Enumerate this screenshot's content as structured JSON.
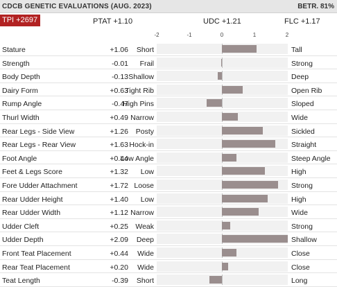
{
  "header": {
    "title": "CDCB GENETIC EVALUATIONS (AUG. 2023)",
    "betr": "BETR. 81%"
  },
  "summary": {
    "tpi": "TPI +2697",
    "ptat": "PTAT +1.10",
    "udc": "UDC +1.21",
    "flc": "FLC +1.17"
  },
  "axis": {
    "range": [
      -2,
      2
    ],
    "ticks": [
      "-2",
      "-1",
      "0",
      "1",
      "2"
    ]
  },
  "traits": [
    {
      "name": "Stature",
      "value_label": "+1.06",
      "value": 1.06,
      "low": "Short",
      "high": "Tall"
    },
    {
      "name": "Strength",
      "value_label": "-0.01",
      "value": -0.01,
      "low": "Frail",
      "high": "Strong"
    },
    {
      "name": "Body Depth",
      "value_label": "-0.13",
      "value": -0.13,
      "low": "Shallow",
      "high": "Deep"
    },
    {
      "name": "Dairy Form",
      "value_label": "+0.63",
      "value": 0.63,
      "low": "Tight Rib",
      "high": "Open Rib"
    },
    {
      "name": "Rump Angle",
      "value_label": "-0.47",
      "value": -0.47,
      "low": "High Pins",
      "high": "Sloped"
    },
    {
      "name": "Thurl Width",
      "value_label": "+0.49",
      "value": 0.49,
      "low": "Narrow",
      "high": "Wide"
    },
    {
      "name": "Rear Legs - Side View",
      "value_label": "+1.26",
      "value": 1.26,
      "low": "Posty",
      "high": "Sickled"
    },
    {
      "name": "Rear Legs - Rear View",
      "value_label": "+1.63",
      "value": 1.63,
      "low": "Hock-in",
      "high": "Straight"
    },
    {
      "name": "Foot Angle",
      "value_label": "+0.44",
      "value": 0.44,
      "low": "Low Angle",
      "high": "Steep Angle"
    },
    {
      "name": "Feet & Legs Score",
      "value_label": "+1.32",
      "value": 1.32,
      "low": "Low",
      "high": "High"
    },
    {
      "name": "Fore Udder Attachment",
      "value_label": "+1.72",
      "value": 1.72,
      "low": "Loose",
      "high": "Strong"
    },
    {
      "name": "Rear Udder Height",
      "value_label": "+1.40",
      "value": 1.4,
      "low": "Low",
      "high": "High"
    },
    {
      "name": "Rear Udder Width",
      "value_label": "+1.12",
      "value": 1.12,
      "low": "Narrow",
      "high": "Wide"
    },
    {
      "name": "Udder Cleft",
      "value_label": "+0.25",
      "value": 0.25,
      "low": "Weak",
      "high": "Strong"
    },
    {
      "name": "Udder Depth",
      "value_label": "+2.09",
      "value": 2.09,
      "low": "Deep",
      "high": "Shallow"
    },
    {
      "name": "Front Teat Placement",
      "value_label": "+0.44",
      "value": 0.44,
      "low": "Wide",
      "high": "Close"
    },
    {
      "name": "Rear Teat Placement",
      "value_label": "+0.20",
      "value": 0.2,
      "low": "Wide",
      "high": "Close"
    },
    {
      "name": "Teat Length",
      "value_label": "-0.39",
      "value": -0.39,
      "low": "Short",
      "high": "Long"
    }
  ],
  "colors": {
    "tpi_badge": "#b22222",
    "bar": "#9a8e8e",
    "header_bg": "#e6e6e6"
  }
}
